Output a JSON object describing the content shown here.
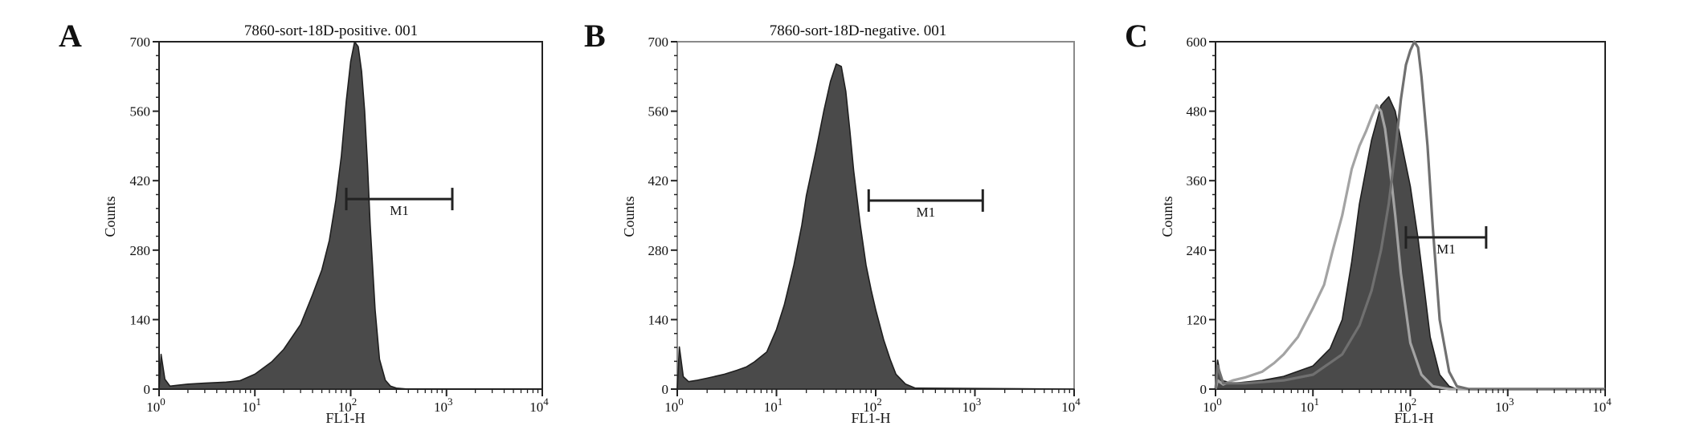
{
  "figure": {
    "panels": [
      {
        "id": "A",
        "letter": "A",
        "title": "7860-sort-18D-positive. 001"
      },
      {
        "id": "B",
        "letter": "B",
        "title": "7860-sort-18D-negative. 001"
      },
      {
        "id": "C",
        "letter": "C",
        "title": ""
      }
    ]
  },
  "chart_data": [
    {
      "panel": "A",
      "type": "area",
      "title": "7860-sort-18D-positive. 001",
      "xlabel": "FL1-H",
      "ylabel": "Counts",
      "xscale": "log",
      "xlim": [
        1,
        10000
      ],
      "ylim": [
        0,
        700
      ],
      "x_ticks": [
        {
          "base": "10",
          "exp": "0",
          "value": 1
        },
        {
          "base": "10",
          "exp": "1",
          "value": 10
        },
        {
          "base": "10",
          "exp": "2",
          "value": 100
        },
        {
          "base": "10",
          "exp": "3",
          "value": 1000
        },
        {
          "base": "10",
          "exp": "4",
          "value": 10000
        }
      ],
      "y_ticks": [
        0,
        140,
        280,
        420,
        560,
        700
      ],
      "gate": {
        "label": "M1",
        "x_start": 90,
        "x_end": 1150,
        "y": 383
      },
      "series": [
        {
          "style": "filled-dark",
          "x": [
            1,
            1.05,
            1.15,
            1.3,
            1.6,
            2,
            3,
            5,
            7,
            10,
            15,
            20,
            30,
            40,
            50,
            60,
            70,
            80,
            90,
            100,
            110,
            120,
            130,
            140,
            150,
            160,
            180,
            200,
            230,
            260,
            300,
            400,
            1000,
            10000
          ],
          "y": [
            0,
            70,
            20,
            6,
            8,
            10,
            12,
            14,
            17,
            30,
            55,
            80,
            130,
            190,
            240,
            300,
            380,
            470,
            580,
            660,
            700,
            690,
            640,
            560,
            450,
            330,
            160,
            60,
            18,
            6,
            2,
            0,
            0,
            0
          ]
        }
      ]
    },
    {
      "panel": "B",
      "type": "area",
      "title": "7860-sort-18D-negative. 001",
      "xlabel": "FL1-H",
      "ylabel": "Counts",
      "xscale": "log",
      "xlim": [
        1,
        10000
      ],
      "ylim": [
        0,
        700
      ],
      "x_ticks": [
        {
          "base": "10",
          "exp": "0",
          "value": 1
        },
        {
          "base": "10",
          "exp": "1",
          "value": 10
        },
        {
          "base": "10",
          "exp": "2",
          "value": 100
        },
        {
          "base": "10",
          "exp": "3",
          "value": 1000
        },
        {
          "base": "10",
          "exp": "4",
          "value": 10000
        }
      ],
      "y_ticks": [
        0,
        140,
        280,
        420,
        560,
        700
      ],
      "gate": {
        "label": "M1",
        "x_start": 85,
        "x_end": 1200,
        "y": 380
      },
      "series": [
        {
          "style": "filled-dark",
          "x": [
            1,
            1.05,
            1.15,
            1.3,
            1.6,
            2,
            3,
            4,
            5,
            6,
            8,
            10,
            12,
            15,
            18,
            20,
            25,
            30,
            35,
            40,
            45,
            50,
            55,
            60,
            70,
            80,
            90,
            100,
            120,
            140,
            160,
            200,
            250,
            10000
          ],
          "y": [
            0,
            85,
            25,
            15,
            18,
            22,
            30,
            38,
            45,
            55,
            75,
            120,
            170,
            250,
            330,
            390,
            480,
            560,
            620,
            655,
            650,
            600,
            520,
            440,
            330,
            250,
            200,
            160,
            100,
            60,
            30,
            10,
            2,
            0
          ]
        }
      ]
    },
    {
      "panel": "C",
      "type": "area",
      "title": "",
      "xlabel": "FL1-H",
      "ylabel": "Counts",
      "xscale": "log",
      "xlim": [
        1,
        10000
      ],
      "ylim": [
        0,
        600
      ],
      "x_ticks": [
        {
          "base": "10",
          "exp": "0",
          "value": 1
        },
        {
          "base": "10",
          "exp": "1",
          "value": 10
        },
        {
          "base": "10",
          "exp": "2",
          "value": 100
        },
        {
          "base": "10",
          "exp": "3",
          "value": 1000
        },
        {
          "base": "10",
          "exp": "4",
          "value": 10000
        }
      ],
      "y_ticks": [
        0,
        120,
        240,
        360,
        480,
        600
      ],
      "gate": {
        "label": "M1",
        "x_start": 90,
        "x_end": 600,
        "y": 262
      },
      "series": [
        {
          "style": "filled-dark",
          "x": [
            1,
            1.05,
            1.15,
            1.5,
            2,
            3,
            5,
            10,
            15,
            20,
            25,
            30,
            40,
            50,
            60,
            70,
            80,
            100,
            120,
            140,
            160,
            200,
            250,
            300,
            10000
          ],
          "y": [
            0,
            50,
            15,
            10,
            12,
            15,
            22,
            40,
            70,
            120,
            220,
            320,
            430,
            490,
            505,
            480,
            430,
            350,
            260,
            170,
            90,
            25,
            5,
            0,
            0
          ]
        },
        {
          "style": "line-light",
          "x": [
            1,
            1.05,
            1.2,
            1.5,
            2,
            3,
            4,
            5,
            7,
            10,
            13,
            16,
            20,
            25,
            30,
            35,
            40,
            45,
            50,
            55,
            60,
            70,
            80,
            100,
            130,
            170,
            250,
            400,
            10000
          ],
          "y": [
            0,
            15,
            8,
            15,
            20,
            30,
            45,
            60,
            90,
            140,
            180,
            240,
            300,
            380,
            420,
            445,
            470,
            490,
            480,
            450,
            400,
            300,
            200,
            80,
            25,
            5,
            0,
            0,
            0
          ]
        },
        {
          "style": "line-mid",
          "x": [
            1,
            1.05,
            1.2,
            2,
            5,
            10,
            20,
            30,
            40,
            50,
            60,
            70,
            80,
            90,
            100,
            110,
            120,
            130,
            150,
            170,
            200,
            250,
            300,
            400,
            10000
          ],
          "y": [
            0,
            40,
            10,
            10,
            15,
            25,
            60,
            110,
            170,
            240,
            320,
            410,
            500,
            560,
            585,
            600,
            590,
            540,
            420,
            280,
            120,
            30,
            5,
            0,
            0
          ]
        }
      ]
    }
  ]
}
